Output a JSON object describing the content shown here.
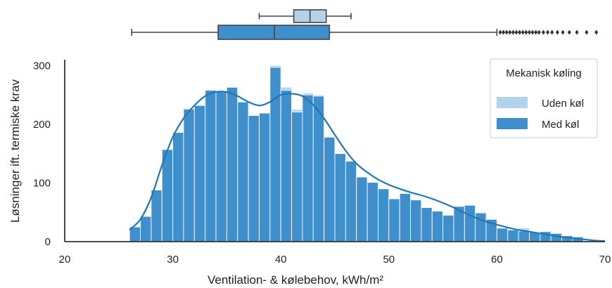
{
  "chart_data": {
    "type": "histogram",
    "xlabel": "Ventilation- & kølebehov, kWh/m²",
    "ylabel": "Løsninger ift. termiske krav",
    "xlim": [
      20,
      70
    ],
    "ylim": [
      0,
      310
    ],
    "xticks": [
      20,
      30,
      40,
      50,
      60,
      70
    ],
    "yticks": [
      0,
      100,
      200,
      300
    ],
    "grid": false,
    "legend": {
      "title": "Mekanisk køling",
      "placement": "top-right",
      "entries": [
        {
          "label": "Uden køl",
          "color": "#b3d3ea"
        },
        {
          "label": "Med køl",
          "color": "#3f8fcc"
        }
      ]
    },
    "bin_width": 1,
    "bin_start": 26,
    "series": [
      {
        "name": "Med køl",
        "color": "#3f8fcc",
        "values": [
          25,
          43,
          88,
          157,
          186,
          226,
          232,
          258,
          255,
          263,
          238,
          215,
          219,
          297,
          258,
          221,
          250,
          248,
          178,
          150,
          137,
          110,
          101,
          90,
          73,
          82,
          71,
          58,
          52,
          45,
          60,
          62,
          49,
          38,
          23,
          20,
          18,
          16,
          17,
          14,
          10,
          8
        ]
      },
      {
        "name": "Uden køl",
        "color": "#b3d3ea",
        "values": [
          0,
          0,
          0,
          0,
          0,
          0,
          0,
          0,
          0,
          0,
          0,
          0,
          1,
          3,
          5,
          4,
          3,
          2,
          1,
          0,
          0,
          0,
          0,
          0,
          0,
          0,
          0,
          0,
          0,
          0,
          0,
          0,
          0,
          0,
          0,
          0,
          5,
          0,
          0,
          0,
          0,
          0
        ]
      }
    ],
    "kde": {
      "color": "#1f77b4",
      "x": [
        26,
        27,
        28,
        29,
        30,
        31,
        32,
        33,
        34,
        35,
        36,
        37,
        38,
        39,
        40,
        41,
        42,
        43,
        44,
        45,
        46,
        47,
        48,
        49,
        50,
        51,
        52,
        53,
        54,
        55,
        56,
        57,
        58,
        59,
        60,
        61,
        62,
        63,
        64,
        65,
        66,
        67,
        68,
        69,
        70
      ],
      "y": [
        20,
        38,
        75,
        130,
        178,
        210,
        232,
        248,
        255,
        255,
        248,
        238,
        232,
        238,
        250,
        252,
        248,
        233,
        210,
        182,
        155,
        133,
        118,
        106,
        97,
        90,
        84,
        79,
        73,
        66,
        58,
        49,
        41,
        34,
        29,
        24,
        20,
        17,
        14,
        11,
        8,
        6,
        4,
        2,
        1
      ]
    },
    "boxplots": [
      {
        "name": "Uden køl",
        "color": "#b3d3ea",
        "whisker_low": 38,
        "q1": 41.2,
        "median": 42.7,
        "q3": 44.2,
        "whisker_high": 46.5,
        "outliers": []
      },
      {
        "name": "Med køl",
        "color": "#3f8fcc",
        "whisker_low": 26.2,
        "q1": 34.2,
        "median": 39.4,
        "q3": 44.5,
        "whisker_high": 60,
        "outliers": [
          60.3,
          60.6,
          60.9,
          61.2,
          61.5,
          61.8,
          62.1,
          62.4,
          62.7,
          63,
          63.3,
          63.6,
          63.9,
          64.3,
          64.7,
          65.1,
          65.6,
          66.1,
          66.7,
          67.4,
          68.3,
          69.2
        ]
      }
    ]
  }
}
